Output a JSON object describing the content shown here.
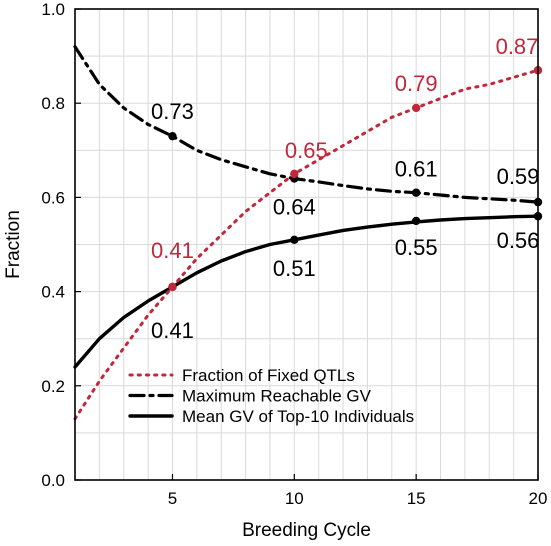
{
  "chart_data": {
    "type": "line",
    "xlabel": "Breeding Cycle",
    "ylabel": "Fraction",
    "xlim": [
      1,
      20
    ],
    "ylim": [
      0.0,
      1.0
    ],
    "xticks": [
      5,
      10,
      15,
      20
    ],
    "yticks": [
      0.0,
      0.2,
      0.4,
      0.6,
      0.8,
      1.0
    ],
    "ytick_labels": [
      "0.0",
      "0.2",
      "0.4",
      "0.6",
      "0.8",
      "1.0"
    ],
    "grid": true,
    "legend_position": "bottom-right",
    "series": [
      {
        "name": "Fraction of Fixed QTLs",
        "style": "dotted",
        "color": "#c0283c",
        "x": [
          1,
          2,
          3,
          4,
          5,
          6,
          7,
          8,
          9,
          10,
          11,
          12,
          13,
          14,
          15,
          16,
          17,
          18,
          19,
          20
        ],
        "y": [
          0.13,
          0.21,
          0.28,
          0.35,
          0.41,
          0.47,
          0.52,
          0.57,
          0.61,
          0.65,
          0.68,
          0.71,
          0.74,
          0.77,
          0.79,
          0.81,
          0.83,
          0.84,
          0.855,
          0.87
        ],
        "markers": [
          {
            "x": 5,
            "y": 0.41,
            "label": "0.41"
          },
          {
            "x": 10,
            "y": 0.65,
            "label": "0.65"
          },
          {
            "x": 15,
            "y": 0.79,
            "label": "0.79"
          },
          {
            "x": 20,
            "y": 0.87,
            "label": "0.87"
          }
        ]
      },
      {
        "name": "Maximum Reachable GV",
        "style": "dashdot",
        "color": "#000000",
        "x": [
          1,
          2,
          3,
          4,
          5,
          6,
          7,
          8,
          9,
          10,
          11,
          12,
          13,
          14,
          15,
          16,
          17,
          18,
          19,
          20
        ],
        "y": [
          0.92,
          0.84,
          0.79,
          0.755,
          0.73,
          0.7,
          0.68,
          0.665,
          0.65,
          0.64,
          0.633,
          0.625,
          0.618,
          0.613,
          0.61,
          0.605,
          0.6,
          0.597,
          0.594,
          0.59
        ],
        "markers": [
          {
            "x": 5,
            "y": 0.73,
            "label": "0.73"
          },
          {
            "x": 10,
            "y": 0.64,
            "label": "0.64"
          },
          {
            "x": 15,
            "y": 0.61,
            "label": "0.61"
          },
          {
            "x": 20,
            "y": 0.59,
            "label": "0.59"
          }
        ]
      },
      {
        "name": "Mean GV of Top-10 Individuals",
        "style": "solid",
        "color": "#000000",
        "x": [
          1,
          2,
          3,
          4,
          5,
          6,
          7,
          8,
          9,
          10,
          11,
          12,
          13,
          14,
          15,
          16,
          17,
          18,
          19,
          20
        ],
        "y": [
          0.24,
          0.3,
          0.345,
          0.38,
          0.41,
          0.44,
          0.465,
          0.485,
          0.5,
          0.51,
          0.52,
          0.53,
          0.537,
          0.543,
          0.548,
          0.552,
          0.555,
          0.557,
          0.559,
          0.56
        ],
        "markers": [
          {
            "x": 5,
            "y": 0.41,
            "label": "0.41"
          },
          {
            "x": 10,
            "y": 0.51,
            "label": "0.51"
          },
          {
            "x": 15,
            "y": 0.55,
            "label": "0.55"
          },
          {
            "x": 20,
            "y": 0.56,
            "label": "0.56"
          }
        ]
      }
    ]
  }
}
